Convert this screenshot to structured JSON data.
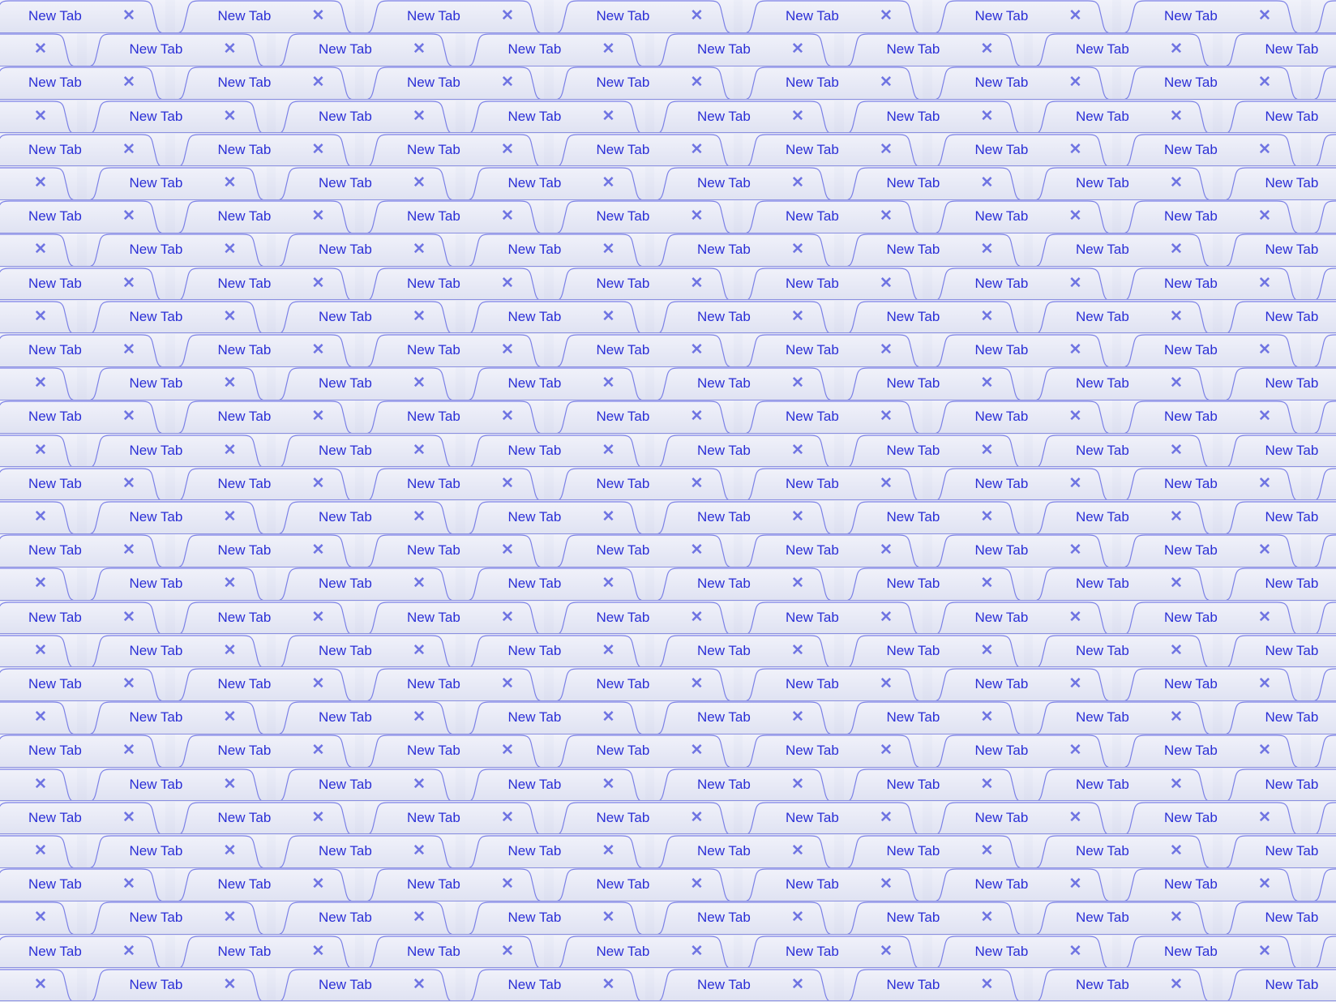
{
  "tab_label": "New Tab",
  "close_glyph": "✕",
  "rows": 30,
  "tabs_per_row": 8,
  "colors": {
    "label": "#2b2fd6",
    "close": "#6f74e2",
    "outline": "#7b80e6",
    "tab_fill_top": "#f1f2fa",
    "tab_fill_bottom": "#dfe2f2"
  }
}
